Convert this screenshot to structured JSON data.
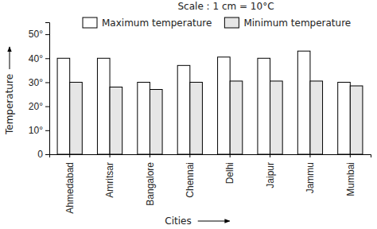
{
  "chart_data": {
    "type": "bar",
    "title": "Scale : 1 cm = 10°C",
    "x_label": "Cities",
    "y_label": "Temperature",
    "categories": [
      "Ahmedabad",
      "Amritsar",
      "Bangalore",
      "Chennai",
      "Delhi",
      "Jaipur",
      "Jammu",
      "Mumbai"
    ],
    "series": [
      {
        "name": "Maximum temperature",
        "color": "#ffffff",
        "values": [
          40,
          40,
          30,
          37,
          40.5,
          40,
          43,
          30
        ]
      },
      {
        "name": "Minimum temperature",
        "color": "#e6e6e6",
        "values": [
          30,
          28,
          27,
          30,
          30.5,
          30.5,
          30.5,
          28.5
        ]
      }
    ],
    "ylim": [
      0,
      55
    ],
    "yticks": [
      0,
      {
        "value": 10,
        "label": "10°"
      },
      {
        "value": 20,
        "label": "20°"
      },
      {
        "value": 30,
        "label": "30°"
      },
      {
        "value": 40,
        "label": "40°"
      },
      {
        "value": 50,
        "label": "50°"
      }
    ],
    "grid": false,
    "legend": "top"
  }
}
